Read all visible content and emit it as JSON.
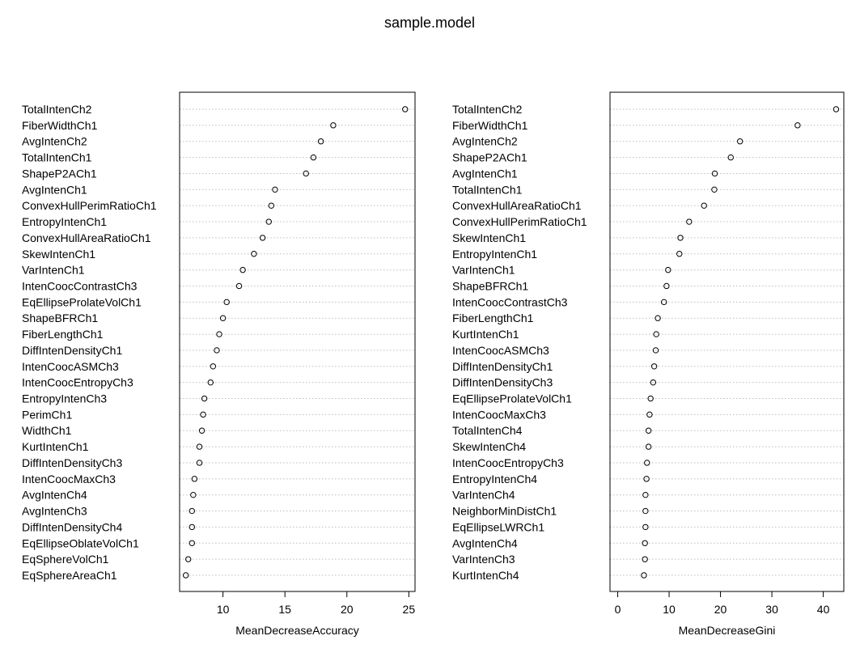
{
  "title": "sample.model",
  "chart_data": [
    {
      "type": "scatter",
      "xlabel": "MeanDecreaseAccuracy",
      "xlim": [
        6.5,
        25.5
      ],
      "xticks": [
        10,
        15,
        20,
        25
      ],
      "grid": "dotted horizontal",
      "categories": [
        "TotalIntenCh2",
        "FiberWidthCh1",
        "AvgIntenCh2",
        "TotalIntenCh1",
        "ShapeP2ACh1",
        "AvgIntenCh1",
        "ConvexHullPerimRatioCh1",
        "EntropyIntenCh1",
        "ConvexHullAreaRatioCh1",
        "SkewIntenCh1",
        "VarIntenCh1",
        "IntenCoocContrastCh3",
        "EqEllipseProlateVolCh1",
        "ShapeBFRCh1",
        "FiberLengthCh1",
        "DiffIntenDensityCh1",
        "IntenCoocASMCh3",
        "IntenCoocEntropyCh3",
        "EntropyIntenCh3",
        "PerimCh1",
        "WidthCh1",
        "KurtIntenCh1",
        "DiffIntenDensityCh3",
        "IntenCoocMaxCh3",
        "AvgIntenCh4",
        "AvgIntenCh3",
        "DiffIntenDensityCh4",
        "EqEllipseOblateVolCh1",
        "EqSphereVolCh1",
        "EqSphereAreaCh1"
      ],
      "values": [
        24.7,
        18.9,
        17.9,
        17.3,
        16.7,
        14.2,
        13.9,
        13.7,
        13.2,
        12.5,
        11.6,
        11.3,
        10.3,
        10.0,
        9.7,
        9.5,
        9.2,
        9.0,
        8.5,
        8.4,
        8.3,
        8.1,
        8.1,
        7.7,
        7.6,
        7.5,
        7.5,
        7.5,
        7.2,
        7.0
      ]
    },
    {
      "type": "scatter",
      "xlabel": "MeanDecreaseGini",
      "xlim": [
        -1.5,
        44.0
      ],
      "xticks": [
        0,
        10,
        20,
        30,
        40
      ],
      "grid": "dotted horizontal",
      "categories": [
        "TotalIntenCh2",
        "FiberWidthCh1",
        "AvgIntenCh2",
        "ShapeP2ACh1",
        "AvgIntenCh1",
        "TotalIntenCh1",
        "ConvexHullAreaRatioCh1",
        "ConvexHullPerimRatioCh1",
        "SkewIntenCh1",
        "EntropyIntenCh1",
        "VarIntenCh1",
        "ShapeBFRCh1",
        "IntenCoocContrastCh3",
        "FiberLengthCh1",
        "KurtIntenCh1",
        "IntenCoocASMCh3",
        "DiffIntenDensityCh1",
        "DiffIntenDensityCh3",
        "EqEllipseProlateVolCh1",
        "IntenCoocMaxCh3",
        "TotalIntenCh4",
        "SkewIntenCh4",
        "IntenCoocEntropyCh3",
        "EntropyIntenCh4",
        "VarIntenCh4",
        "NeighborMinDistCh1",
        "EqEllipseLWRCh1",
        "AvgIntenCh4",
        "VarIntenCh3",
        "KurtIntenCh4"
      ],
      "values": [
        42.5,
        35.0,
        23.8,
        22.0,
        18.9,
        18.8,
        16.8,
        13.9,
        12.2,
        12.0,
        9.8,
        9.5,
        9.0,
        7.8,
        7.5,
        7.4,
        7.1,
        6.9,
        6.4,
        6.2,
        6.0,
        6.0,
        5.7,
        5.6,
        5.4,
        5.4,
        5.4,
        5.3,
        5.3,
        5.1
      ]
    }
  ]
}
